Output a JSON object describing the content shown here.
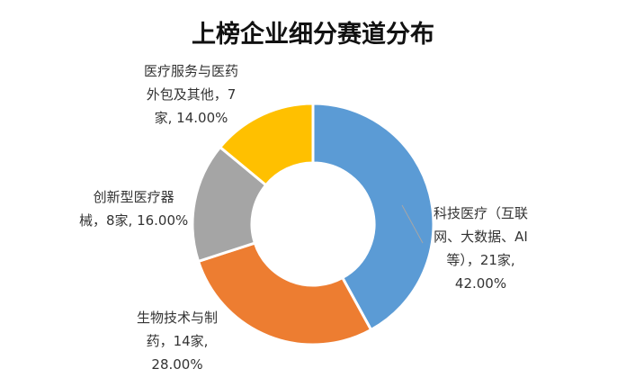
{
  "title": "上榜企业细分赛道分布",
  "chart_data": {
    "type": "pie",
    "variant": "donut",
    "title": "上榜企业细分赛道分布",
    "slices": [
      {
        "name": "科技医疗（互联网、大数据、AI等）",
        "count": 21,
        "percent": 42.0,
        "color": "#5B9BD5",
        "label_lines": [
          "科技医疗（互联",
          "网、大数据、AI",
          "等），21家,",
          "42.00%"
        ]
      },
      {
        "name": "生物技术与制药",
        "count": 14,
        "percent": 28.0,
        "color": "#ED7D31",
        "label_lines": [
          "生物技术与制",
          "药，14家,",
          "28.00%"
        ]
      },
      {
        "name": "创新型医疗器械",
        "count": 8,
        "percent": 16.0,
        "color": "#A5A5A5",
        "label_lines": [
          "创新型医疗器",
          "械，8家, 16.00%"
        ]
      },
      {
        "name": "医疗服务与医药外包及其他",
        "count": 7,
        "percent": 14.0,
        "color": "#FFC000",
        "label_lines": [
          "医疗服务与医药",
          "外包及其他，7",
          "家, 14.00%"
        ]
      }
    ]
  }
}
